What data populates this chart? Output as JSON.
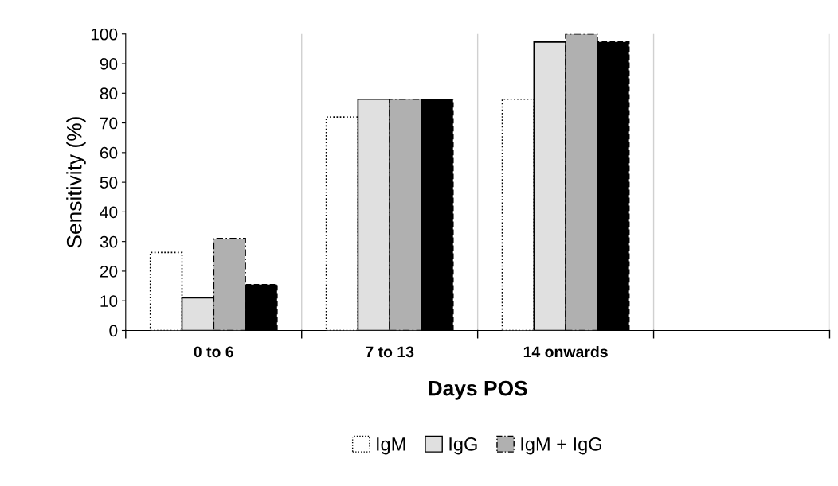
{
  "chart_data": {
    "type": "bar",
    "xlabel": "Days POS",
    "ylabel": "Sensitivity (%)",
    "categories": [
      "0 to 6",
      "7 to 13",
      "14 onwards",
      null
    ],
    "series": [
      {
        "name": "IgM",
        "color": "#ffffff",
        "line_style": "dotted",
        "values": [
          26.3,
          72,
          78,
          null
        ]
      },
      {
        "name": "IgG",
        "color": "#e0e0e0",
        "line_style": "solid",
        "values": [
          11,
          78,
          97.3,
          null
        ]
      },
      {
        "name": "IgM + IgG",
        "color": "#b0b0b0",
        "line_style": "dashdot",
        "values": [
          31,
          78,
          100,
          null
        ]
      },
      {
        "color": "#000000",
        "line_style": "dashed",
        "values": [
          15.5,
          78,
          97.3,
          null
        ]
      }
    ],
    "ylim": [
      0,
      100
    ],
    "yticks": [
      0,
      10,
      20,
      30,
      40,
      50,
      60,
      70,
      80,
      90,
      100
    ],
    "grid": "x",
    "legend": "bottom"
  }
}
